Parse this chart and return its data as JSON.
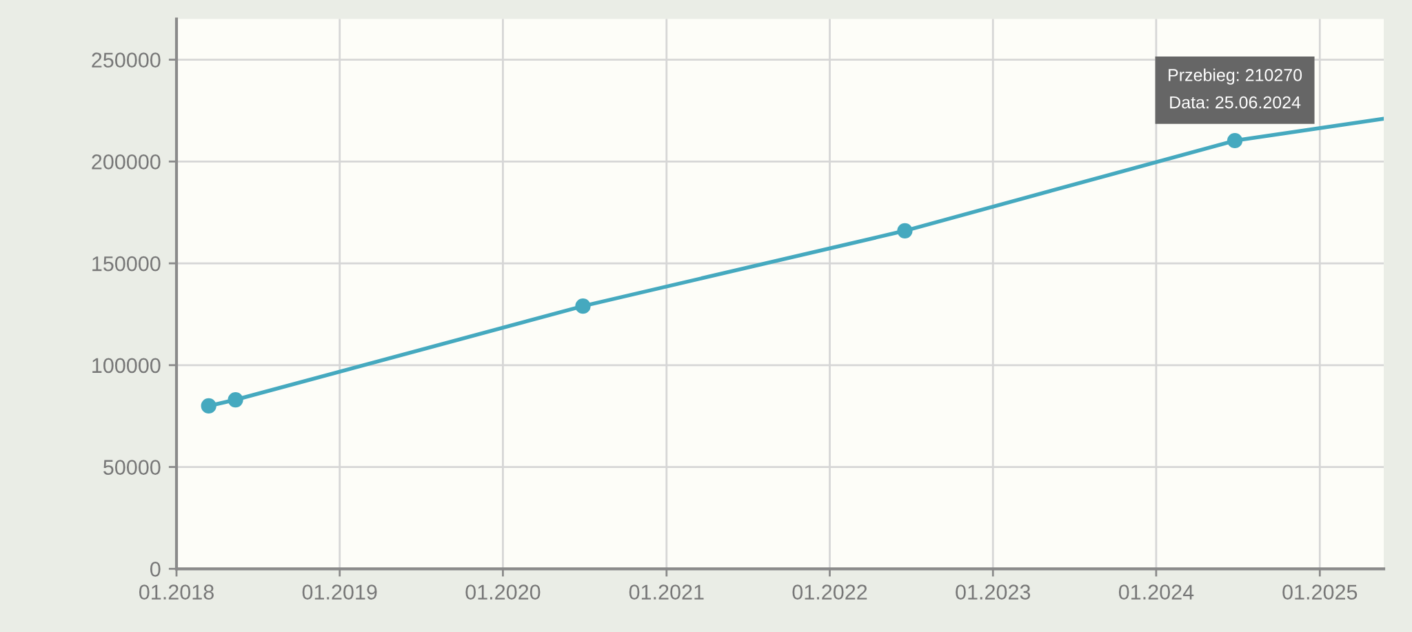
{
  "chart_data": {
    "type": "line",
    "x": [
      "2018-03-14",
      "2018-05-13",
      "2020-06-28",
      "2022-06-18",
      "2024-06-25",
      "2025-05-24"
    ],
    "series": [
      {
        "color": "#45a9bf",
        "values": [
          80000,
          83000,
          129000,
          166000,
          210270,
          221000
        ]
      }
    ],
    "xlim": [
      "2018-01-01",
      "2025-05-24"
    ],
    "ylim": [
      0,
      270000
    ],
    "xticks": [
      {
        "value": "2018-01-01",
        "label": "01.2018"
      },
      {
        "value": "2019-01-01",
        "label": "01.2019"
      },
      {
        "value": "2020-01-01",
        "label": "01.2020"
      },
      {
        "value": "2021-01-01",
        "label": "01.2021"
      },
      {
        "value": "2022-01-01",
        "label": "01.2022"
      },
      {
        "value": "2023-01-01",
        "label": "01.2023"
      },
      {
        "value": "2024-01-01",
        "label": "01.2024"
      },
      {
        "value": "2025-01-01",
        "label": "01.2025"
      }
    ],
    "yticks": [
      0,
      50000,
      100000,
      150000,
      200000,
      250000
    ],
    "grid": true,
    "marker": "circle",
    "line_style": "solid",
    "annotations": [
      {
        "text": "Przebieg: 210270\nData: 25.06.2024",
        "x": "2024-06-25",
        "y": 210270
      }
    ]
  }
}
